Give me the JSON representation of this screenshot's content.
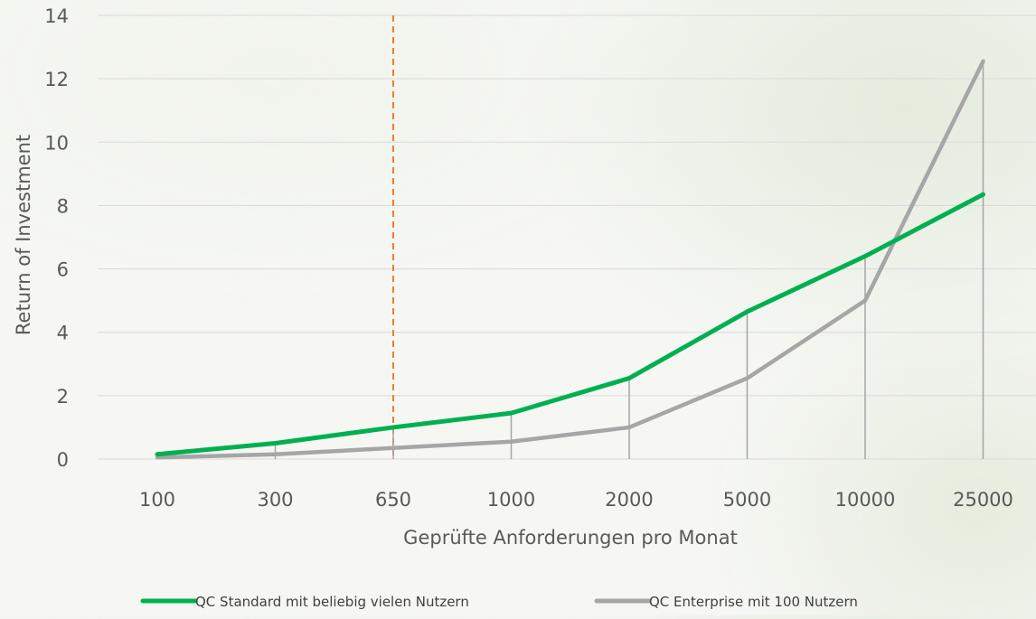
{
  "chart_data": {
    "type": "line",
    "title": "",
    "xlabel": "Geprüfte Anforderungen pro Monat",
    "ylabel": "Return of Investment",
    "categories": [
      "100",
      "300",
      "650",
      "1000",
      "2000",
      "5000",
      "10000",
      "25000"
    ],
    "ylim": [
      0,
      14
    ],
    "yticks": [
      "0",
      "2",
      "4",
      "6",
      "8",
      "10",
      "12",
      "14"
    ],
    "grid": true,
    "legend_position": "bottom",
    "marker_category": "650",
    "series": [
      {
        "name": "QC Standard mit beliebig vielen Nutzern",
        "color": "#00b050",
        "values": [
          0.15,
          0.5,
          1.0,
          1.45,
          2.55,
          4.65,
          6.4,
          8.35
        ]
      },
      {
        "name": "QC Enterprise mit 100 Nutzern",
        "color": "#a6a6a6",
        "values": [
          0.05,
          0.15,
          0.35,
          0.55,
          1.0,
          2.55,
          5.0,
          12.55
        ]
      }
    ],
    "colors": {
      "grid": "#d9d9d9",
      "marker_line": "#ed7d31",
      "drop_lines": "#a6a6a6"
    }
  }
}
